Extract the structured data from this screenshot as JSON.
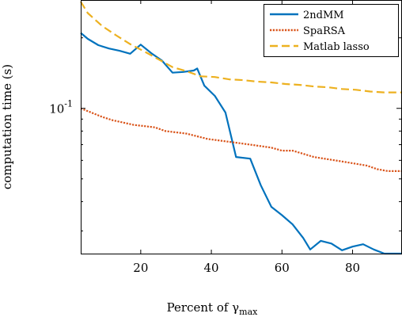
{
  "chart_data": {
    "type": "line",
    "title": "",
    "xlabel": "Percent of γ",
    "xlabel_subscript": "max",
    "ylabel": "computation time (s)",
    "xlim": [
      3,
      94
    ],
    "ylim": [
      0.024,
      0.29
    ],
    "yscale": "log",
    "x_ticks": [
      20,
      40,
      60,
      80
    ],
    "x_tick_labels": [
      "20",
      "40",
      "60",
      "80"
    ],
    "y_ticks": [
      0.1
    ],
    "y_tick_labels": [
      "10",
      "-1"
    ],
    "grid": false,
    "legend_position": "top-right",
    "series": [
      {
        "name": "2ndMM",
        "color": "#0072BD",
        "style": "solid",
        "x": [
          3,
          5,
          8,
          11,
          14,
          17,
          20,
          23,
          26,
          29,
          32,
          35,
          36,
          38,
          41,
          44,
          47,
          51,
          54,
          57,
          60,
          63,
          66,
          68,
          71,
          74,
          77,
          80,
          83,
          86,
          89,
          94
        ],
        "y": [
          0.21,
          0.198,
          0.186,
          0.18,
          0.176,
          0.171,
          0.187,
          0.172,
          0.16,
          0.142,
          0.143,
          0.145,
          0.148,
          0.125,
          0.113,
          0.096,
          0.062,
          0.061,
          0.047,
          0.038,
          0.035,
          0.032,
          0.028,
          0.025,
          0.0272,
          0.0265,
          0.0248,
          0.0257,
          0.0263,
          0.025,
          0.024,
          0.024
        ]
      },
      {
        "name": "SpaRSA",
        "color": "#D95319",
        "style": "dotted",
        "x": [
          3,
          6,
          9,
          12,
          15,
          18,
          21,
          24,
          27,
          30,
          33,
          36,
          39,
          42,
          45,
          48,
          51,
          54,
          57,
          60,
          63,
          66,
          69,
          72,
          75,
          78,
          81,
          84,
          87,
          90,
          94
        ],
        "y": [
          0.1,
          0.096,
          0.092,
          0.089,
          0.087,
          0.085,
          0.084,
          0.083,
          0.08,
          0.079,
          0.078,
          0.076,
          0.074,
          0.073,
          0.072,
          0.071,
          0.07,
          0.069,
          0.068,
          0.066,
          0.066,
          0.064,
          0.062,
          0.061,
          0.06,
          0.059,
          0.058,
          0.057,
          0.055,
          0.054,
          0.054
        ]
      },
      {
        "name": "Matlab lasso",
        "color": "#EDB120",
        "style": "dashed",
        "x": [
          3,
          5,
          9,
          13,
          17,
          21,
          25,
          29,
          33,
          37,
          41,
          45,
          49,
          53,
          57,
          61,
          65,
          69,
          73,
          77,
          81,
          85,
          89,
          94
        ],
        "y": [
          0.285,
          0.255,
          0.225,
          0.205,
          0.188,
          0.175,
          0.162,
          0.15,
          0.144,
          0.137,
          0.136,
          0.133,
          0.132,
          0.13,
          0.129,
          0.127,
          0.126,
          0.124,
          0.123,
          0.121,
          0.12,
          0.118,
          0.117,
          0.117
        ]
      }
    ]
  }
}
